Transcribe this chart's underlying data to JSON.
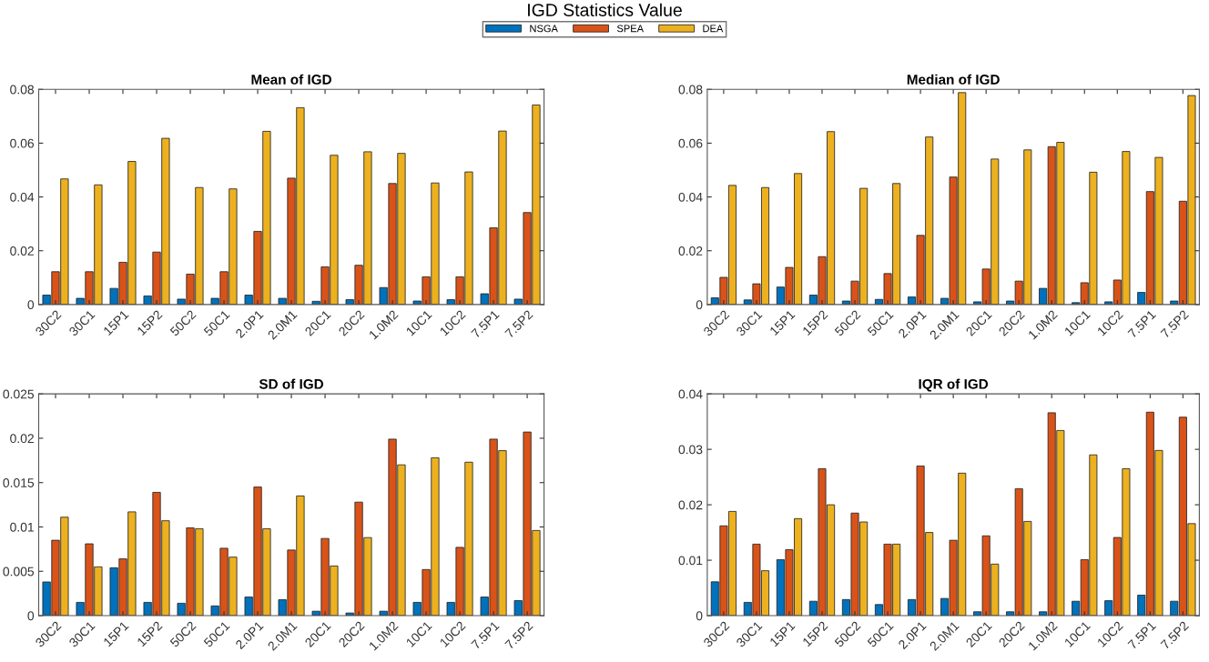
{
  "chart_data": [
    {
      "type": "bar",
      "title": "Mean of IGD",
      "annotations": [
        "IGD Statistics Value"
      ],
      "legend": "top",
      "categories": [
        "30C2",
        "30C1",
        "15P1",
        "15P2",
        "50C2",
        "50C1",
        "2.0P1",
        "2.0M1",
        "20C1",
        "20C2",
        "1.0M2",
        "10C1",
        "10C2",
        "7.5P1",
        "7.5P2"
      ],
      "series": [
        {
          "name": "NSGA",
          "color": "#0072bd",
          "values": [
            0.0035,
            0.0023,
            0.006,
            0.0032,
            0.002,
            0.0023,
            0.0035,
            0.0023,
            0.0012,
            0.0018,
            0.0063,
            0.0013,
            0.0018,
            0.004,
            0.002
          ]
        },
        {
          "name": "SPEA",
          "color": "#d95319",
          "values": [
            0.0122,
            0.0122,
            0.0157,
            0.0195,
            0.0113,
            0.0122,
            0.0272,
            0.047,
            0.014,
            0.0146,
            0.045,
            0.0103,
            0.0103,
            0.0285,
            0.0342
          ]
        },
        {
          "name": "DEA",
          "color": "#edb120",
          "values": [
            0.0467,
            0.0445,
            0.0532,
            0.0618,
            0.0435,
            0.043,
            0.0644,
            0.0732,
            0.0555,
            0.0568,
            0.0562,
            0.0452,
            0.0493,
            0.0645,
            0.0742
          ]
        }
      ],
      "ylim": [
        0,
        0.08
      ],
      "yticks": [
        0,
        0.02,
        0.04,
        0.06,
        0.08
      ]
    },
    {
      "type": "bar",
      "title": "Median of IGD",
      "categories": [
        "30C2",
        "30C1",
        "15P1",
        "15P2",
        "50C2",
        "50C1",
        "2.0P1",
        "2.0M1",
        "20C1",
        "20C2",
        "1.0M2",
        "10C1",
        "10C2",
        "7.5P1",
        "7.5P2"
      ],
      "series": [
        {
          "color": "#0072bd",
          "values": [
            0.0025,
            0.0017,
            0.0065,
            0.0035,
            0.0013,
            0.0019,
            0.0028,
            0.0023,
            0.001,
            0.0013,
            0.006,
            0.0007,
            0.001,
            0.0045,
            0.0013
          ]
        },
        {
          "color": "#d95319",
          "values": [
            0.0101,
            0.0077,
            0.0138,
            0.0178,
            0.0087,
            0.0115,
            0.0257,
            0.0474,
            0.0132,
            0.0087,
            0.0587,
            0.0081,
            0.0091,
            0.042,
            0.0384
          ]
        },
        {
          "color": "#edb120",
          "values": [
            0.0443,
            0.0435,
            0.0487,
            0.0643,
            0.0432,
            0.045,
            0.0623,
            0.0788,
            0.0541,
            0.0575,
            0.0603,
            0.0492,
            0.0569,
            0.0547,
            0.0777
          ]
        }
      ],
      "ylim": [
        0,
        0.08
      ],
      "yticks": [
        0,
        0.02,
        0.04,
        0.06,
        0.08
      ]
    },
    {
      "type": "bar",
      "title": "SD of IGD",
      "categories": [
        "30C2",
        "30C1",
        "15P1",
        "15P2",
        "50C2",
        "50C1",
        "2.0P1",
        "2.0M1",
        "20C1",
        "20C2",
        "1.0M2",
        "10C1",
        "10C2",
        "7.5P1",
        "7.5P2"
      ],
      "series": [
        {
          "color": "#0072bd",
          "values": [
            0.0038,
            0.0015,
            0.0054,
            0.0015,
            0.0014,
            0.0011,
            0.0021,
            0.0018,
            0.0005,
            0.0003,
            0.0005,
            0.0015,
            0.0015,
            0.0021,
            0.0017
          ]
        },
        {
          "color": "#d95319",
          "values": [
            0.0085,
            0.0081,
            0.0064,
            0.0139,
            0.0099,
            0.0076,
            0.0145,
            0.0074,
            0.0087,
            0.0128,
            0.0199,
            0.0052,
            0.0077,
            0.0199,
            0.0207
          ]
        },
        {
          "color": "#edb120",
          "values": [
            0.0111,
            0.0055,
            0.0117,
            0.0107,
            0.0098,
            0.0066,
            0.0098,
            0.0135,
            0.0056,
            0.0088,
            0.017,
            0.0178,
            0.0173,
            0.0186,
            0.0096
          ]
        }
      ],
      "ylim": [
        0,
        0.025
      ],
      "yticks": [
        0,
        0.005,
        0.01,
        0.015,
        0.02,
        0.025
      ]
    },
    {
      "type": "bar",
      "title": "IQR of IGD",
      "categories": [
        "30C2",
        "30C1",
        "15P1",
        "15P2",
        "50C2",
        "50C1",
        "2.0P1",
        "2.0M1",
        "20C1",
        "20C2",
        "1.0M2",
        "10C1",
        "10C2",
        "7.5P1",
        "7.5P2"
      ],
      "series": [
        {
          "color": "#0072bd",
          "values": [
            0.0061,
            0.0024,
            0.0101,
            0.0026,
            0.0029,
            0.002,
            0.0029,
            0.0031,
            0.0007,
            0.0007,
            0.0007,
            0.0026,
            0.0027,
            0.0037,
            0.0026
          ]
        },
        {
          "color": "#d95319",
          "values": [
            0.0162,
            0.0129,
            0.0119,
            0.0265,
            0.0185,
            0.0129,
            0.027,
            0.0136,
            0.0144,
            0.0229,
            0.0366,
            0.0101,
            0.0141,
            0.0367,
            0.0358
          ]
        },
        {
          "color": "#edb120",
          "values": [
            0.0188,
            0.0081,
            0.0175,
            0.02,
            0.0169,
            0.0129,
            0.015,
            0.0257,
            0.0093,
            0.017,
            0.0334,
            0.029,
            0.0265,
            0.0298,
            0.0166
          ]
        }
      ],
      "ylim": [
        0,
        0.04
      ],
      "yticks": [
        0,
        0.01,
        0.02,
        0.03,
        0.04
      ]
    }
  ]
}
